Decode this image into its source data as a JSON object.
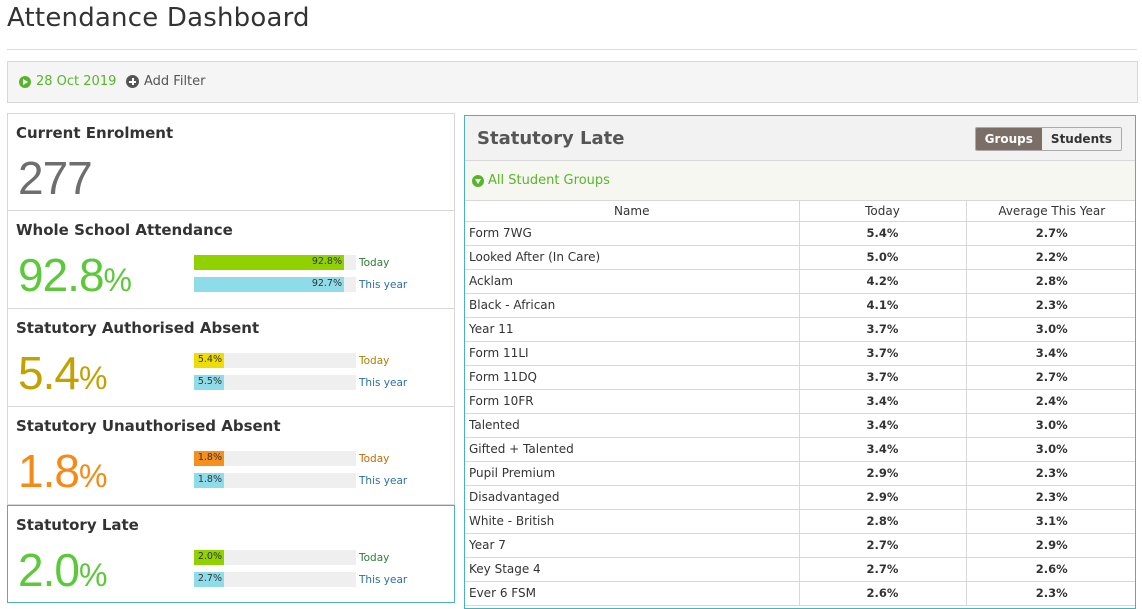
{
  "page": {
    "title": "Attendance Dashboard"
  },
  "filter_bar": {
    "date": "28 Oct 2019",
    "add_filter": "Add Filter"
  },
  "enrolment": {
    "title": "Current Enrolment",
    "value": "277"
  },
  "metrics": [
    {
      "title": "Whole School Attendance",
      "value": "92.8",
      "unit": "%",
      "color": "#5cc93a",
      "today": {
        "value": 92.8,
        "text": "92.8%",
        "label": "Today",
        "color": "#8fd200"
      },
      "year": {
        "value": 92.7,
        "text": "92.7%",
        "label": "This year",
        "color": "#8edbe9"
      }
    },
    {
      "title": "Statutory Authorised Absent",
      "value": "5.4",
      "unit": "%",
      "color": "#c2a100",
      "today": {
        "value": 5.4,
        "text": "5.4%",
        "label": "Today",
        "color": "#eedd00"
      },
      "year": {
        "value": 5.5,
        "text": "5.5%",
        "label": "This year",
        "color": "#8edbe9"
      }
    },
    {
      "title": "Statutory Unauthorised Absent",
      "value": "1.8",
      "unit": "%",
      "color": "#f58a16",
      "today": {
        "value": 1.8,
        "text": "1.8%",
        "label": "Today",
        "color": "#f5901e"
      },
      "year": {
        "value": 1.8,
        "text": "1.8%",
        "label": "This year",
        "color": "#8edbe9"
      }
    },
    {
      "title": "Statutory Late",
      "value": "2.0",
      "unit": "%",
      "color": "#5cc93a",
      "today": {
        "value": 2.0,
        "text": "2.0%",
        "label": "Today",
        "color": "#8fd200"
      },
      "year": {
        "value": 2.7,
        "text": "2.7%",
        "label": "This year",
        "color": "#8edbe9"
      }
    }
  ],
  "panel": {
    "title": "Statutory Late",
    "toggle": {
      "groups": "Groups",
      "students": "Students",
      "active": "groups"
    },
    "group_filter": "All Student Groups",
    "columns": [
      "Name",
      "Today",
      "Average This Year"
    ],
    "rows": [
      [
        "Form 7WG",
        "5.4%",
        "2.7%"
      ],
      [
        "Looked After (In Care)",
        "5.0%",
        "2.2%"
      ],
      [
        "Acklam",
        "4.2%",
        "2.8%"
      ],
      [
        "Black - African",
        "4.1%",
        "2.3%"
      ],
      [
        "Year 11",
        "3.7%",
        "3.0%"
      ],
      [
        "Form 11LI",
        "3.7%",
        "3.4%"
      ],
      [
        "Form 11DQ",
        "3.7%",
        "2.7%"
      ],
      [
        "Form 10FR",
        "3.4%",
        "2.4%"
      ],
      [
        "Talented",
        "3.4%",
        "3.0%"
      ],
      [
        "Gifted + Talented",
        "3.4%",
        "3.0%"
      ],
      [
        "Pupil Premium",
        "2.9%",
        "2.3%"
      ],
      [
        "Disadvantaged",
        "2.9%",
        "2.3%"
      ],
      [
        "White - British",
        "2.8%",
        "3.1%"
      ],
      [
        "Year 7",
        "2.7%",
        "2.9%"
      ],
      [
        "Key Stage 4",
        "2.7%",
        "2.6%"
      ],
      [
        "Ever 6 FSM",
        "2.6%",
        "2.3%"
      ]
    ]
  }
}
